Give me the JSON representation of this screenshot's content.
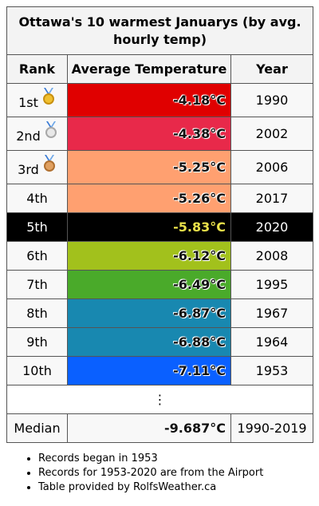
{
  "title": "Ottawa's 10 warmest Januarys (by avg. hourly temp)",
  "headers": {
    "rank": "Rank",
    "temp": "Average Temperature",
    "year": "Year"
  },
  "rows": [
    {
      "rank": "1st",
      "temp": "-4.18°C",
      "year": "1990",
      "color": "#e00000",
      "medal": "gold"
    },
    {
      "rank": "2nd",
      "temp": "-4.38°C",
      "year": "2002",
      "color": "#e8294a",
      "medal": "silver"
    },
    {
      "rank": "3rd",
      "temp": "-5.25°C",
      "year": "2006",
      "color": "#ffa070",
      "medal": "bronze"
    },
    {
      "rank": "4th",
      "temp": "-5.26°C",
      "year": "2017",
      "color": "#ffa070"
    },
    {
      "rank": "5th",
      "temp": "-5.83°C",
      "year": "2020",
      "color": "#000000",
      "highlight": true
    },
    {
      "rank": "6th",
      "temp": "-6.12°C",
      "year": "2008",
      "color": "#a2c11c"
    },
    {
      "rank": "7th",
      "temp": "-6.49°C",
      "year": "1995",
      "color": "#4aaa2a"
    },
    {
      "rank": "8th",
      "temp": "-6.87°C",
      "year": "1967",
      "color": "#1888b0"
    },
    {
      "rank": "9th",
      "temp": "-6.88°C",
      "year": "1964",
      "color": "#1888b0"
    },
    {
      "rank": "10th",
      "temp": "-7.11°C",
      "year": "1953",
      "color": "#0a60ff"
    }
  ],
  "ellipsis": "⋮",
  "median": {
    "label": "Median",
    "temp": "-9.687°C",
    "years": "1990-2019"
  },
  "notes": [
    "Records began in 1953",
    "Records for 1953-2020 are from the Airport",
    "Table provided by RolfsWeather.ca"
  ]
}
